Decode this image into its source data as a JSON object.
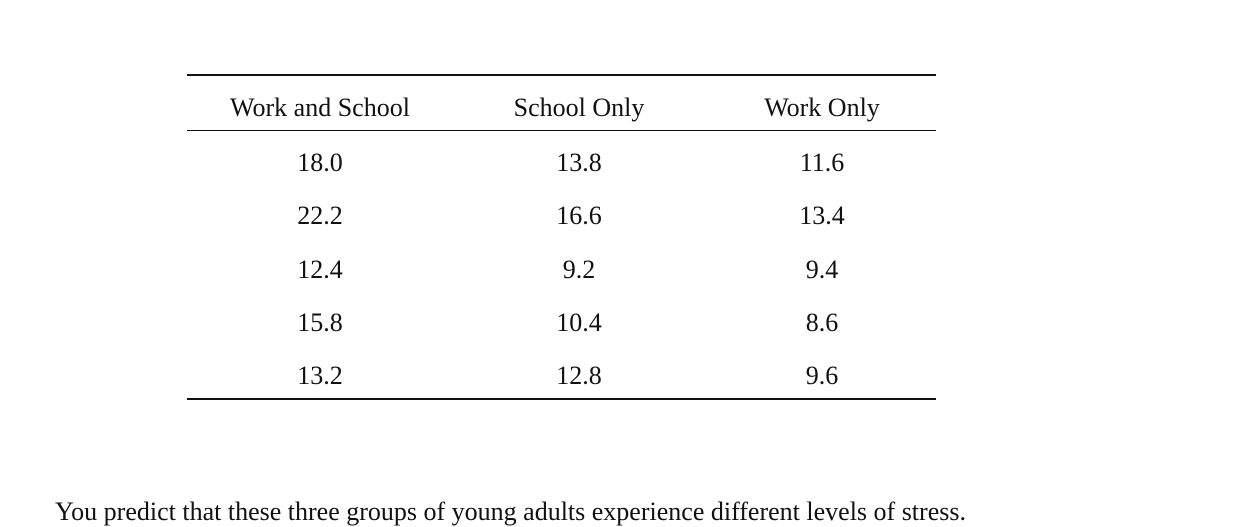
{
  "table": {
    "header": [
      "Work and School",
      "School Only",
      "Work Only"
    ],
    "rows": [
      [
        "18.0",
        "13.8",
        "11.6"
      ],
      [
        "22.2",
        "16.6",
        "13.4"
      ],
      [
        "12.4",
        "9.2",
        "9.4"
      ],
      [
        "15.8",
        "10.4",
        "8.6"
      ],
      [
        "13.2",
        "12.8",
        "9.6"
      ]
    ]
  },
  "paragraph": "You predict that these three groups of young adults experience different levels of stress."
}
